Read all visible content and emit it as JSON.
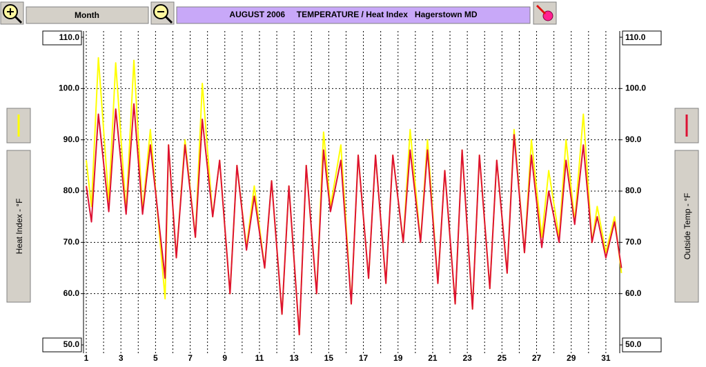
{
  "toolbar": {
    "range_button": "Month"
  },
  "chart_data": {
    "type": "line",
    "title": "AUGUST 2006     TEMPERATURE / Heat Index   Hagerstown MD",
    "x": [
      1,
      1.3,
      1.7,
      2.3,
      2.7,
      3.3,
      3.75,
      4.25,
      4.7,
      5.55,
      5.75,
      6.2,
      6.7,
      7.3,
      7.7,
      8.3,
      8.7,
      9.3,
      9.7,
      10.25,
      10.7,
      11.3,
      11.7,
      12.3,
      12.7,
      13.3,
      13.7,
      14.3,
      14.7,
      15.1,
      15.7,
      16.3,
      16.7,
      17.3,
      17.7,
      18.3,
      18.7,
      19.3,
      19.7,
      20.3,
      20.7,
      21.3,
      21.7,
      22.3,
      22.7,
      23.3,
      23.7,
      24.3,
      24.7,
      25.3,
      25.7,
      26.3,
      26.7,
      27.3,
      27.7,
      28.3,
      28.7,
      29.2,
      29.7,
      30.2,
      30.5,
      31.0,
      31.5,
      31.9
    ],
    "series": [
      {
        "name": "Heat Index - °F",
        "color": "#ffff00",
        "axis": "y",
        "values": [
          86,
          77,
          106,
          78,
          105,
          76,
          105.5,
          76,
          92,
          59,
          89,
          67,
          90,
          71,
          101,
          75,
          86,
          60,
          85,
          69,
          81,
          65,
          82,
          56,
          81,
          52,
          85,
          60,
          91.5,
          77,
          89,
          58,
          87,
          63,
          87,
          62,
          87,
          70,
          92,
          70,
          90,
          62,
          84,
          58,
          88,
          57,
          87,
          61,
          86,
          64,
          92,
          68,
          90,
          71,
          84,
          71,
          90,
          74,
          95,
          70,
          77,
          68,
          75,
          64
        ]
      },
      {
        "name": "Outside Temp - °F",
        "color": "#dd1133",
        "axis": "y2",
        "values": [
          81,
          74,
          95,
          76,
          96,
          75.5,
          97,
          75.5,
          89,
          63,
          89,
          67,
          89,
          71,
          94,
          75,
          86,
          60,
          85,
          68.5,
          79,
          65,
          82,
          56,
          81,
          52,
          85,
          60,
          88,
          76,
          86,
          58,
          87,
          63,
          87,
          62,
          87,
          70,
          88,
          70,
          88,
          62,
          84,
          58,
          88,
          57,
          87,
          61,
          86,
          64,
          91,
          68,
          87,
          69,
          80,
          70,
          86,
          73.5,
          89,
          70,
          75,
          67,
          74,
          65
        ]
      }
    ],
    "xlim": [
      1,
      32
    ],
    "xticks": [
      1,
      3,
      5,
      7,
      9,
      11,
      13,
      15,
      17,
      19,
      21,
      23,
      25,
      27,
      29,
      31
    ],
    "xminorticks": [
      2,
      4,
      6,
      8,
      10,
      12,
      14,
      16,
      18,
      20,
      22,
      24,
      26,
      28,
      30,
      32
    ],
    "ylim": [
      50,
      110
    ],
    "yticks": [
      {
        "value": 50,
        "label": "50.0"
      },
      {
        "value": 60,
        "label": "60.0"
      },
      {
        "value": 70,
        "label": "70.0"
      },
      {
        "value": 80,
        "label": "80.0"
      },
      {
        "value": 90,
        "label": "90.0"
      },
      {
        "value": 100,
        "label": "100.0"
      },
      {
        "value": 110,
        "label": "110.0"
      }
    ],
    "y2lim": [
      50,
      110
    ],
    "y2ticks": [
      {
        "value": 50,
        "label": "50.0"
      },
      {
        "value": 60,
        "label": "60.0"
      },
      {
        "value": 70,
        "label": "70.0"
      },
      {
        "value": 80,
        "label": "80.0"
      },
      {
        "value": 90,
        "label": "90.0"
      },
      {
        "value": 100,
        "label": "100.0"
      },
      {
        "value": 110,
        "label": "110.0"
      }
    ],
    "grid": true
  }
}
